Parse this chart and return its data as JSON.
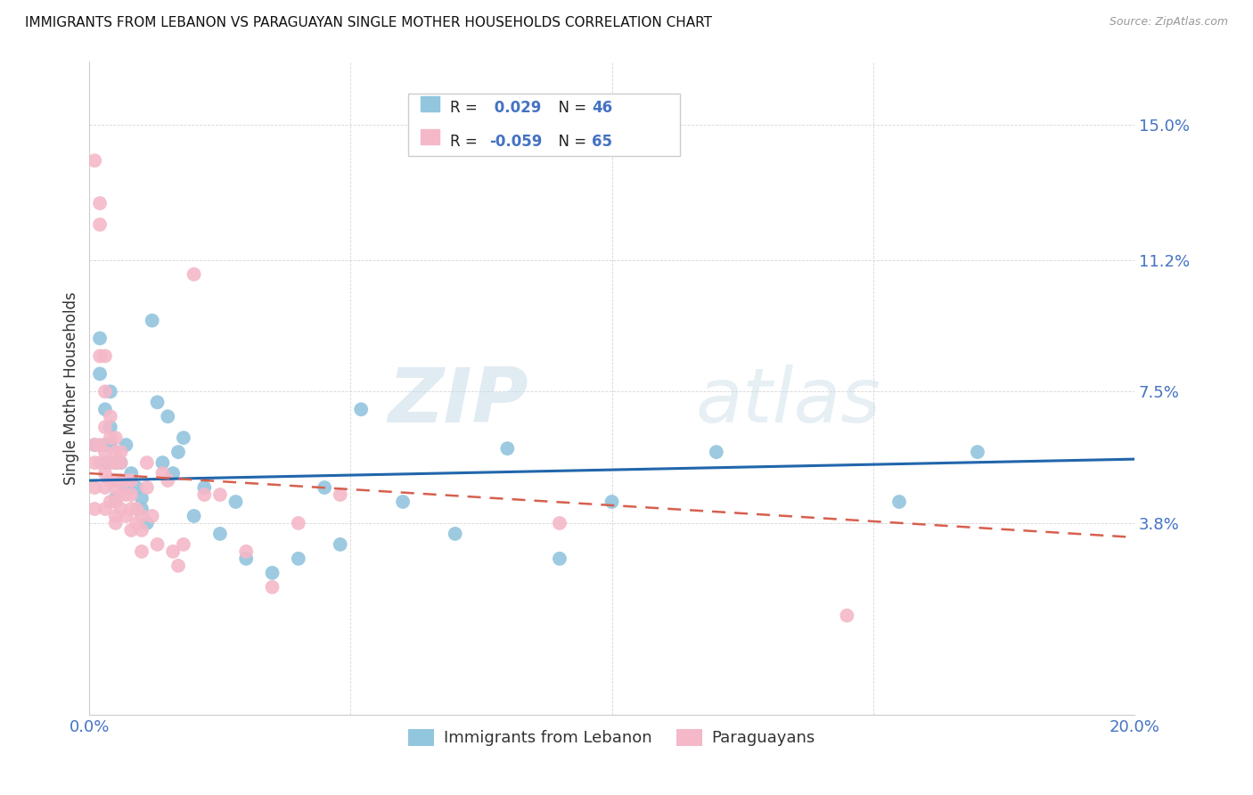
{
  "title": "IMMIGRANTS FROM LEBANON VS PARAGUAYAN SINGLE MOTHER HOUSEHOLDS CORRELATION CHART",
  "source": "Source: ZipAtlas.com",
  "ylabel": "Single Mother Households",
  "legend_label1": "Immigrants from Lebanon",
  "legend_label2": "Paraguayans",
  "r1": 0.029,
  "n1": 46,
  "r2": -0.059,
  "n2": 65,
  "xlim": [
    0.0,
    0.2
  ],
  "ylim": [
    -0.016,
    0.168
  ],
  "yticks": [
    0.038,
    0.075,
    0.112,
    0.15
  ],
  "ytick_labels": [
    "3.8%",
    "7.5%",
    "11.2%",
    "15.0%"
  ],
  "xticks": [
    0.0,
    0.05,
    0.1,
    0.15,
    0.2
  ],
  "xtick_labels": [
    "0.0%",
    "",
    "",
    "",
    "20.0%"
  ],
  "color_blue": "#92c5de",
  "color_pink": "#f4b8c8",
  "line_color_blue": "#2166ac",
  "line_color_pink": "#d6604d",
  "watermark_zip": "ZIP",
  "watermark_atlas": "atlas",
  "blue_points_x": [
    0.001,
    0.002,
    0.002,
    0.003,
    0.003,
    0.003,
    0.004,
    0.004,
    0.004,
    0.005,
    0.005,
    0.005,
    0.006,
    0.006,
    0.007,
    0.007,
    0.008,
    0.009,
    0.01,
    0.01,
    0.011,
    0.012,
    0.013,
    0.014,
    0.015,
    0.016,
    0.017,
    0.018,
    0.02,
    0.022,
    0.025,
    0.028,
    0.03,
    0.035,
    0.04,
    0.045,
    0.048,
    0.052,
    0.06,
    0.07,
    0.08,
    0.09,
    0.1,
    0.12,
    0.155,
    0.17
  ],
  "blue_points_y": [
    0.06,
    0.09,
    0.08,
    0.07,
    0.06,
    0.055,
    0.075,
    0.065,
    0.06,
    0.055,
    0.05,
    0.045,
    0.055,
    0.05,
    0.06,
    0.048,
    0.052,
    0.048,
    0.045,
    0.042,
    0.038,
    0.095,
    0.072,
    0.055,
    0.068,
    0.052,
    0.058,
    0.062,
    0.04,
    0.048,
    0.035,
    0.044,
    0.028,
    0.024,
    0.028,
    0.048,
    0.032,
    0.07,
    0.044,
    0.035,
    0.059,
    0.028,
    0.044,
    0.058,
    0.044,
    0.058
  ],
  "pink_points_x": [
    0.001,
    0.001,
    0.001,
    0.001,
    0.001,
    0.002,
    0.002,
    0.002,
    0.002,
    0.002,
    0.003,
    0.003,
    0.003,
    0.003,
    0.003,
    0.003,
    0.003,
    0.004,
    0.004,
    0.004,
    0.004,
    0.004,
    0.005,
    0.005,
    0.005,
    0.005,
    0.005,
    0.005,
    0.005,
    0.005,
    0.006,
    0.006,
    0.006,
    0.006,
    0.006,
    0.007,
    0.007,
    0.007,
    0.008,
    0.008,
    0.008,
    0.008,
    0.009,
    0.009,
    0.01,
    0.01,
    0.01,
    0.011,
    0.011,
    0.012,
    0.013,
    0.014,
    0.015,
    0.016,
    0.017,
    0.018,
    0.02,
    0.022,
    0.025,
    0.03,
    0.035,
    0.04,
    0.048,
    0.09,
    0.145
  ],
  "pink_points_y": [
    0.14,
    0.06,
    0.055,
    0.048,
    0.042,
    0.128,
    0.122,
    0.085,
    0.06,
    0.055,
    0.085,
    0.075,
    0.065,
    0.058,
    0.052,
    0.048,
    0.042,
    0.068,
    0.062,
    0.055,
    0.05,
    0.044,
    0.062,
    0.058,
    0.055,
    0.05,
    0.048,
    0.044,
    0.04,
    0.038,
    0.058,
    0.055,
    0.05,
    0.046,
    0.042,
    0.05,
    0.046,
    0.04,
    0.05,
    0.046,
    0.042,
    0.036,
    0.042,
    0.038,
    0.04,
    0.036,
    0.03,
    0.055,
    0.048,
    0.04,
    0.032,
    0.052,
    0.05,
    0.03,
    0.026,
    0.032,
    0.108,
    0.046,
    0.046,
    0.03,
    0.02,
    0.038,
    0.046,
    0.038,
    0.012
  ]
}
